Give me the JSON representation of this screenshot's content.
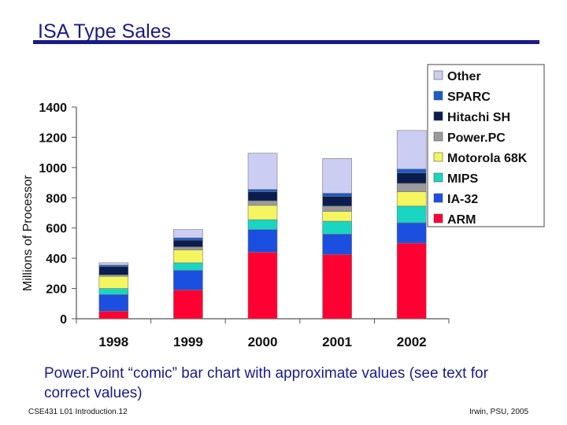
{
  "slide": {
    "title": "ISA Type Sales",
    "caption": "Power.Point “comic” bar chart with approximate values (see text for correct values)",
    "footer_left": "CSE431 L01 Introduction.12",
    "footer_right": "Irwin, PSU, 2005"
  },
  "colors": {
    "ARM": "#ff0033",
    "IA-32": "#1a4fe0",
    "MIPS": "#19d6c2",
    "Motorola 68K": "#f5f560",
    "Power.PC": "#9a9a9a",
    "Hitachi SH": "#0b1d4d",
    "SPARC": "#1a5cc8",
    "Other": "#cccdf2"
  },
  "chart_data": {
    "type": "bar",
    "stacked": true,
    "title": "",
    "xlabel": "",
    "ylabel": "Millions of Processor",
    "ylim": [
      0,
      1400
    ],
    "yticks": [
      "0",
      "200",
      "400",
      "600",
      "800",
      "1000",
      "1200",
      "1400"
    ],
    "categories": [
      "1998",
      "1999",
      "2000",
      "2001",
      "2002"
    ],
    "grid": false,
    "legend": "top-right",
    "series": [
      {
        "name": "ARM",
        "values": [
          50,
          190,
          440,
          425,
          500
        ]
      },
      {
        "name": "IA-32",
        "values": [
          110,
          130,
          150,
          135,
          135
        ]
      },
      {
        "name": "MIPS",
        "values": [
          40,
          50,
          65,
          85,
          110
        ]
      },
      {
        "name": "Motorola 68K",
        "values": [
          80,
          85,
          95,
          65,
          95
        ]
      },
      {
        "name": "Power.PC",
        "values": [
          10,
          20,
          30,
          35,
          55
        ]
      },
      {
        "name": "Hitachi SH",
        "values": [
          55,
          45,
          60,
          65,
          70
        ]
      },
      {
        "name": "SPARC",
        "values": [
          10,
          15,
          15,
          20,
          25
        ]
      },
      {
        "name": "Other",
        "values": [
          15,
          55,
          240,
          230,
          255
        ]
      }
    ]
  }
}
